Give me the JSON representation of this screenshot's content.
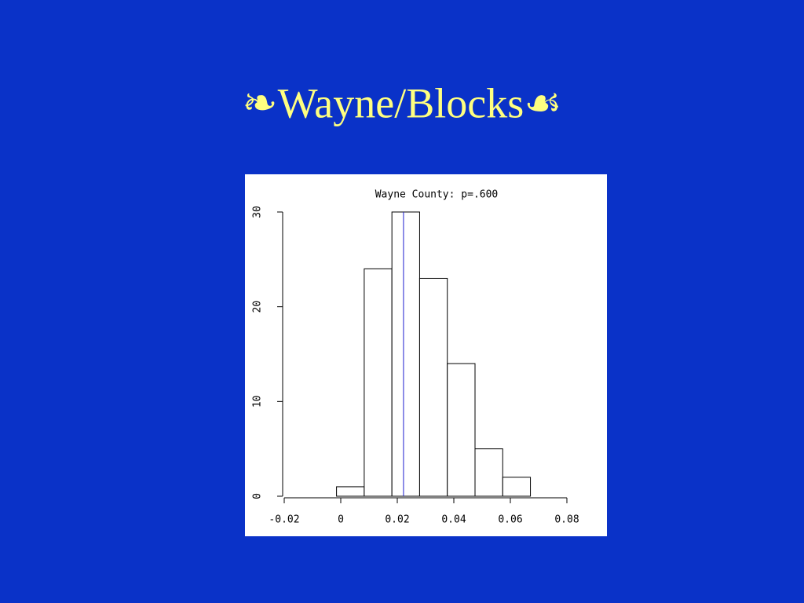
{
  "slide_title": "❧Wayne/Blocks☙",
  "chart_data": {
    "type": "histogram",
    "title": "Wayne County: p=.600",
    "bins": [
      -0.0015,
      0.0083,
      0.0181,
      0.0279,
      0.0377,
      0.0475,
      0.0573,
      0.0671
    ],
    "counts": [
      1,
      24,
      30,
      23,
      14,
      5,
      2
    ],
    "color": "#ffffff",
    "edgecolor": "#000000",
    "reference_line": {
      "x": 0.0222,
      "color": "#2020d0"
    },
    "xlim": [
      -0.02,
      0.08
    ],
    "xticks": [
      -0.02,
      0,
      0.02,
      0.04,
      0.06,
      0.08
    ],
    "ylim": [
      0,
      30
    ],
    "yticks": [
      0,
      10,
      20,
      30
    ],
    "grid": false
  }
}
